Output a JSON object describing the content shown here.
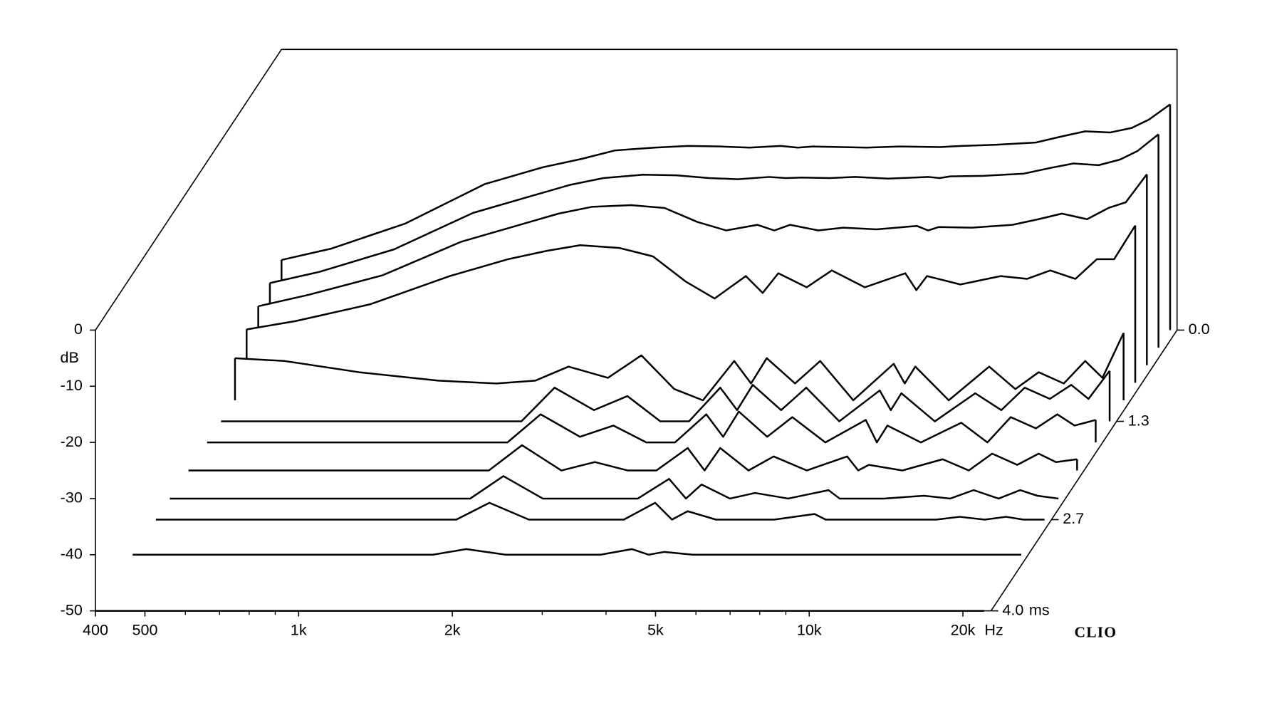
{
  "chart_data": {
    "type": "waterfall",
    "x_unit": "Hz",
    "y_label": "dB",
    "z_unit": "ms",
    "brand": "CLIO",
    "xscale": "log",
    "x": [
      400,
      500,
      700,
      1000,
      1300,
      1550,
      1800,
      2150,
      2500,
      2900,
      3300,
      3800,
      4100,
      4400,
      5000,
      5600,
      6500,
      7800,
      8200,
      8600,
      10000,
      12000,
      13500,
      15000,
      16800,
      18500,
      20000,
      22000
    ],
    "xlim": [
      400,
      22700
    ],
    "xticks": [
      400,
      500,
      {
        "value": 1000,
        "label": "1k"
      },
      {
        "value": 2000,
        "label": "2k"
      },
      {
        "value": 5000,
        "label": "5k"
      },
      {
        "value": 10000,
        "label": "10k"
      },
      {
        "value": 20000,
        "label": "20k"
      }
    ],
    "xminor": [
      600,
      700,
      800,
      900,
      3000,
      4000,
      6000,
      7000,
      8000,
      9000
    ],
    "ylim": [
      -50,
      0
    ],
    "yticks": [
      0,
      -10,
      -20,
      -30,
      -40,
      -50
    ],
    "zlim": [
      0,
      4
    ],
    "zticks": [
      {
        "value": 0,
        "label": "0.0"
      },
      1.3,
      2.7,
      {
        "value": 4,
        "label": "4.0"
      }
    ],
    "color": "#000000",
    "series": [
      {
        "t": 0,
        "values": [
          -37.5,
          -35.5,
          -31,
          -24,
          -21,
          -19.5,
          -18,
          -17.5,
          -17.2,
          -17.3,
          -17.5,
          -17.2,
          -17.5,
          -17.3,
          -17.4,
          -17.5,
          -17.3,
          -17.4,
          -17.3,
          -17.2,
          -17,
          -16.6,
          -15.5,
          -14.6,
          -14.8,
          -14,
          -12.5,
          -9.8
        ]
      },
      {
        "t": 0.25,
        "values": [
          -38.5,
          -36.5,
          -32.5,
          -26,
          -23,
          -21,
          -19.8,
          -19.2,
          -19.3,
          -19.8,
          -20,
          -19.6,
          -19.8,
          -19.7,
          -19.8,
          -19.6,
          -19.9,
          -19.6,
          -19.8,
          -19.5,
          -19.4,
          -19,
          -18,
          -17.2,
          -17.5,
          -16.5,
          -15,
          -12
        ]
      },
      {
        "t": 0.5,
        "values": [
          -39.5,
          -37.5,
          -34,
          -28,
          -25,
          -23,
          -21.8,
          -21.5,
          -22,
          -24.5,
          -26,
          -25,
          -26,
          -25,
          -26,
          -25.5,
          -25.8,
          -25.2,
          -26,
          -25.4,
          -25.5,
          -25,
          -24,
          -23,
          -24,
          -22,
          -21,
          -16
        ]
      },
      {
        "t": 0.75,
        "values": [
          -40.5,
          -39,
          -36,
          -31,
          -28,
          -26.5,
          -25.5,
          -26,
          -27.5,
          -32,
          -35,
          -31,
          -34,
          -30.5,
          -33,
          -30,
          -33,
          -30.5,
          -33.5,
          -31,
          -32.5,
          -31,
          -31.5,
          -30,
          -31.5,
          -28,
          -28,
          -22
        ]
      },
      {
        "t": 1.0,
        "values": [
          -42.5,
          -43,
          -45,
          -46.5,
          -47,
          -46.5,
          -44,
          -46,
          -42,
          -48,
          -50,
          -43,
          -47,
          -42.5,
          -47,
          -43,
          -50,
          -43.5,
          -47,
          -44,
          -50,
          -44,
          -48,
          -45,
          -47,
          -43,
          -46,
          -38
        ]
      },
      {
        "t": 1.3,
        "values": [
          -50,
          -50,
          -50,
          -50,
          -50,
          -50,
          -44,
          -48,
          -45.5,
          -50,
          -50,
          -44,
          -48,
          -43.5,
          -48,
          -44,
          -50,
          -44.5,
          -48,
          -45,
          -50,
          -45,
          -48,
          -44,
          -46,
          -43.5,
          -46,
          -41
        ]
      },
      {
        "t": 1.6,
        "values": [
          -50,
          -50,
          -50,
          -50,
          -50,
          -50,
          -45,
          -49,
          -47,
          -50,
          -50,
          -45,
          -49,
          -44.5,
          -49,
          -45.5,
          -50,
          -46,
          -50,
          -47,
          -50,
          -46.5,
          -50,
          -45.5,
          -47.5,
          -45,
          -47,
          -46
        ]
      },
      {
        "t": 2.0,
        "values": [
          -50,
          -50,
          -50,
          -50,
          -50,
          -50,
          -45.5,
          -50,
          -48.5,
          -50,
          -50,
          -46,
          -50,
          -46,
          -50,
          -47.5,
          -50,
          -47.5,
          -50,
          -49,
          -50,
          -48,
          -50,
          -47,
          -49,
          -47,
          -48.5,
          -48
        ]
      },
      {
        "t": 2.4,
        "values": [
          -50,
          -50,
          -50,
          -50,
          -50,
          -50,
          -46,
          -50,
          -50,
          -50,
          -50,
          -46.5,
          -50,
          -47.5,
          -50,
          -49,
          -50,
          -48.5,
          -50,
          -50,
          -50,
          -49.5,
          -50,
          -48.5,
          -50,
          -48.5,
          -49.5,
          -50
        ]
      },
      {
        "t": 2.7,
        "values": [
          -50,
          -50,
          -50,
          -50,
          -50,
          -50,
          -47,
          -50,
          -50,
          -50,
          -50,
          -47,
          -50,
          -48.5,
          -50,
          -50,
          -50,
          -49,
          -50,
          -50,
          -50,
          -50,
          -50,
          -49.5,
          -50,
          -49.5,
          -50,
          -50
        ]
      },
      {
        "t": 3.2,
        "values": [
          -50,
          -50,
          -50,
          -50,
          -50,
          -50,
          -49,
          -50,
          -50,
          -50,
          -50,
          -49,
          -50,
          -49.5,
          -50,
          -50,
          -50,
          -50,
          -50,
          -50,
          -50,
          -50,
          -50,
          -50,
          -50,
          -50,
          -50,
          -50
        ]
      },
      {
        "t": 4.0,
        "values": [
          -50,
          -50,
          -50,
          -50,
          -50,
          -50,
          -50,
          -50,
          -50,
          -50,
          -50,
          -50,
          -50,
          -50,
          -50,
          -50,
          -50,
          -50,
          -50,
          -50,
          -50,
          -50,
          -50,
          -50,
          -50,
          -50,
          -50,
          -50
        ]
      }
    ]
  }
}
